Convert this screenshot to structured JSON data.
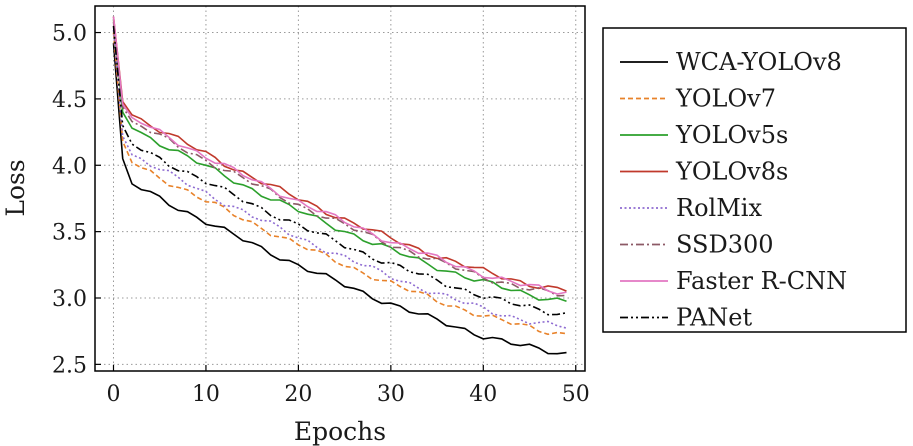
{
  "chart_data": {
    "type": "line",
    "xlabel": "Epochs",
    "ylabel": "Loss",
    "xlim": [
      -2,
      51
    ],
    "ylim": [
      2.45,
      5.2
    ],
    "xticks": [
      0,
      10,
      20,
      30,
      40,
      50
    ],
    "yticks": [
      2.5,
      3.0,
      3.5,
      4.0,
      4.5,
      5.0
    ],
    "xtick_labels": [
      "0",
      "10",
      "20",
      "30",
      "40",
      "50"
    ],
    "ytick_labels": [
      "2.5",
      "3.0",
      "3.5",
      "4.0",
      "4.5",
      "5.0"
    ],
    "grid": true,
    "legend_position": "right",
    "series": [
      {
        "name": "WCA-YOLOv8",
        "color": "#000000",
        "dash": "solid",
        "start": 4.92,
        "e1": 4.05,
        "e2": 3.86,
        "end": 2.58
      },
      {
        "name": "YOLOv7",
        "color": "#e8822a",
        "dash": "dashed",
        "start": 5.0,
        "e1": 4.18,
        "e2": 4.02,
        "end": 2.73
      },
      {
        "name": "YOLOv5s",
        "color": "#2ca02c",
        "dash": "solid",
        "start": 5.1,
        "e1": 4.4,
        "e2": 4.28,
        "end": 2.98
      },
      {
        "name": "YOLOv8s",
        "color": "#c0392b",
        "dash": "solid",
        "start": 5.12,
        "e1": 4.48,
        "e2": 4.38,
        "end": 3.06
      },
      {
        "name": "RolMix",
        "color": "#8e6bd1",
        "dash": "dotted",
        "start": 5.02,
        "e1": 4.22,
        "e2": 4.08,
        "end": 2.78
      },
      {
        "name": "SSD300",
        "color": "#8c5a66",
        "dash": "dashdot",
        "start": 5.08,
        "e1": 4.44,
        "e2": 4.33,
        "end": 3.02
      },
      {
        "name": "Faster R-CNN",
        "color": "#e377c2",
        "dash": "solid",
        "start": 5.12,
        "e1": 4.46,
        "e2": 4.36,
        "end": 3.04
      },
      {
        "name": "PANet",
        "color": "#000000",
        "dash": "dashdotdot",
        "start": 5.05,
        "e1": 4.3,
        "e2": 4.16,
        "end": 2.88
      }
    ]
  }
}
